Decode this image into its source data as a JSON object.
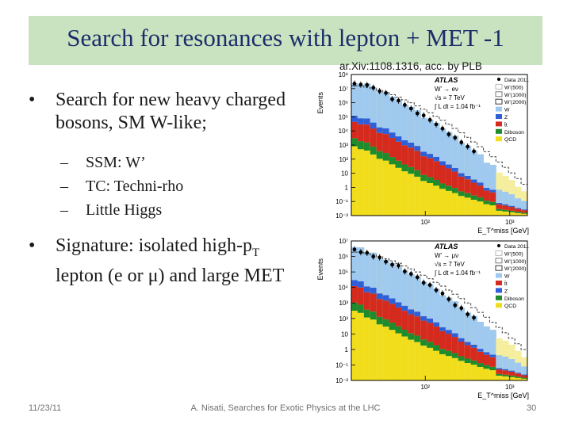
{
  "slide": {
    "title": "Search for resonances with lepton + MET -1",
    "citation": "ar.Xiv:1108.1316, acc. by PLB",
    "bullets": {
      "b1_text": "Search for new heavy charged bosons, SM W-like;",
      "sub": [
        "SSM: W’",
        "TC: Techni-rho",
        "Little Higgs"
      ],
      "b2_text_pre": "Signature: isolated high-p",
      "b2_sub": "T",
      "b2_text_post": " lepton (e or μ) and large MET"
    },
    "footer": {
      "date": "11/23/11",
      "center": "A. Nisati, Searches for Exotic Physics at the LHC",
      "page": "30"
    }
  },
  "plots": [
    {
      "ylabel": "Events",
      "xlabel": "E_T^miss [GeV]",
      "ytick_labels": [
        "10⁸",
        "10⁷",
        "10⁶",
        "10⁵",
        "10⁴",
        "10³",
        "10²",
        "10",
        "1",
        "10⁻¹",
        "10⁻²"
      ],
      "xtick_labels": [
        "10²",
        "10³"
      ],
      "atlas": "ATLAS",
      "channel": "W’ → eν",
      "energy": "√s = 7 TeV",
      "lumi": "∫ L dt = 1.04 fb⁻¹",
      "legend": [
        "Data 2011",
        "W’(500)",
        "W’(1000)",
        "W’(2000)",
        "W",
        "Z",
        "t̄t",
        "Diboson",
        "QCD"
      ]
    },
    {
      "ylabel": "Events",
      "xlabel": "E_T^miss [GeV]",
      "ytick_labels": [
        "10⁷",
        "10⁶",
        "10⁵",
        "10⁴",
        "10³",
        "10²",
        "10",
        "1",
        "10⁻¹",
        "10⁻²"
      ],
      "xtick_labels": [
        "10²",
        "10³"
      ],
      "atlas": "ATLAS",
      "channel": "W’ → μν",
      "energy": "√s = 7 TeV",
      "lumi": "∫ L dt = 1.04 fb⁻¹",
      "legend": [
        "Data 2011",
        "W’(500)",
        "W’(1000)",
        "W’(2000)",
        "W",
        "t̄t",
        "Z",
        "Diboson",
        "QCD"
      ]
    }
  ],
  "colors": {
    "title_band": "#c9e3c1",
    "title_text": "#1b2e6a",
    "W": "#9fc9ef",
    "Z": "#2f5fd8",
    "ttbar": "#d42b1e",
    "Diboson": "#1e8b2d",
    "QCD": "#f2dd1c",
    "bkg_total": "#f4ee9e",
    "Wprime500": "#b9b9b9",
    "Wprime1000": "#7a7a7a",
    "Wprime2000": "#3c3c3c",
    "data": "#000000"
  }
}
